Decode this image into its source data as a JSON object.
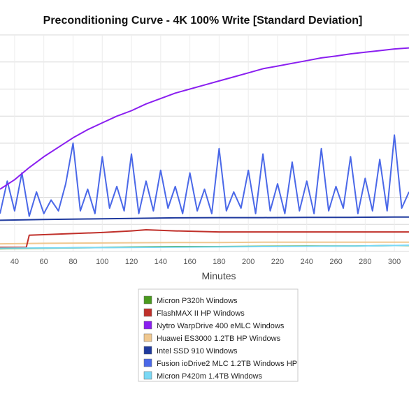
{
  "chart_data": {
    "type": "line",
    "title": "Preconditioning Curve - 4K 100% Write [Standard Deviation]",
    "xlabel": "Minutes",
    "ylabel": "",
    "x_ticks": [
      40,
      60,
      80,
      100,
      120,
      140,
      160,
      180,
      200,
      220,
      240,
      260,
      280,
      300
    ],
    "xlim": [
      30,
      310
    ],
    "ylim": [
      0,
      8
    ],
    "grid": true,
    "legend_position": "bottom-center",
    "series": [
      {
        "name": "Micron P320h Windows",
        "color": "#4a9a1e",
        "x": [
          30,
          60,
          90,
          120,
          150,
          180,
          210,
          240,
          270,
          300,
          310
        ],
        "y": [
          0.1,
          0.12,
          0.14,
          0.16,
          0.18,
          0.18,
          0.19,
          0.2,
          0.2,
          0.22,
          0.22
        ]
      },
      {
        "name": "FlashMAX II HP Windows",
        "color": "#c0302a",
        "x": [
          30,
          48,
          50,
          60,
          80,
          100,
          120,
          130,
          150,
          180,
          210,
          240,
          270,
          300,
          310
        ],
        "y": [
          0.15,
          0.15,
          0.6,
          0.62,
          0.66,
          0.7,
          0.76,
          0.8,
          0.76,
          0.72,
          0.72,
          0.72,
          0.72,
          0.72,
          0.72
        ]
      },
      {
        "name": "Nytro WarpDrive 400 eMLC Windows",
        "color": "#8a1ff0",
        "x": [
          30,
          40,
          50,
          60,
          70,
          80,
          90,
          100,
          110,
          120,
          130,
          140,
          150,
          160,
          170,
          180,
          190,
          200,
          210,
          220,
          230,
          240,
          250,
          260,
          270,
          280,
          290,
          300,
          310
        ],
        "y": [
          2.3,
          2.65,
          3.1,
          3.5,
          3.85,
          4.2,
          4.5,
          4.75,
          5.0,
          5.2,
          5.45,
          5.65,
          5.85,
          6.0,
          6.15,
          6.3,
          6.45,
          6.6,
          6.75,
          6.85,
          6.95,
          7.05,
          7.15,
          7.22,
          7.3,
          7.36,
          7.42,
          7.48,
          7.52
        ]
      },
      {
        "name": "Huawei ES3000 1.2TB HP Windows",
        "color": "#f0c890",
        "x": [
          30,
          60,
          90,
          120,
          150,
          180,
          210,
          240,
          270,
          300,
          310
        ],
        "y": [
          0.28,
          0.3,
          0.31,
          0.32,
          0.33,
          0.33,
          0.34,
          0.34,
          0.34,
          0.34,
          0.34
        ]
      },
      {
        "name": "Intel SSD 910 Windows",
        "color": "#1f3a9e",
        "x": [
          30,
          60,
          90,
          120,
          150,
          180,
          210,
          240,
          270,
          300,
          310
        ],
        "y": [
          1.15,
          1.18,
          1.2,
          1.22,
          1.24,
          1.25,
          1.25,
          1.26,
          1.26,
          1.27,
          1.27
        ]
      },
      {
        "name": "Fusion ioDrive2 MLC 1.2TB Windows HP",
        "color": "#4a68e8",
        "x": [
          30,
          35,
          40,
          45,
          50,
          55,
          60,
          65,
          70,
          75,
          80,
          85,
          90,
          95,
          100,
          105,
          110,
          115,
          120,
          125,
          130,
          135,
          140,
          145,
          150,
          155,
          160,
          165,
          170,
          175,
          180,
          185,
          190,
          195,
          200,
          205,
          210,
          215,
          220,
          225,
          230,
          235,
          240,
          245,
          250,
          255,
          260,
          265,
          270,
          275,
          280,
          285,
          290,
          295,
          300,
          305,
          310
        ],
        "y": [
          1.4,
          2.6,
          1.5,
          2.9,
          1.3,
          2.2,
          1.4,
          1.9,
          1.5,
          2.5,
          4.0,
          1.5,
          2.3,
          1.4,
          3.5,
          1.6,
          2.4,
          1.5,
          3.6,
          1.4,
          2.6,
          1.5,
          3.0,
          1.6,
          2.4,
          1.4,
          2.9,
          1.5,
          2.3,
          1.4,
          3.8,
          1.5,
          2.2,
          1.6,
          3.0,
          1.4,
          3.6,
          1.5,
          2.5,
          1.4,
          3.3,
          1.5,
          2.6,
          1.4,
          3.8,
          1.5,
          2.4,
          1.6,
          3.5,
          1.4,
          2.7,
          1.5,
          3.4,
          1.5,
          4.3,
          1.6,
          2.2
        ]
      },
      {
        "name": "Micron P420m 1.4TB Windows",
        "color": "#7ad8f5",
        "x": [
          30,
          60,
          90,
          120,
          150,
          180,
          210,
          240,
          270,
          300,
          310
        ],
        "y": [
          0.12,
          0.13,
          0.14,
          0.15,
          0.16,
          0.17,
          0.18,
          0.19,
          0.2,
          0.22,
          0.23
        ]
      }
    ]
  }
}
